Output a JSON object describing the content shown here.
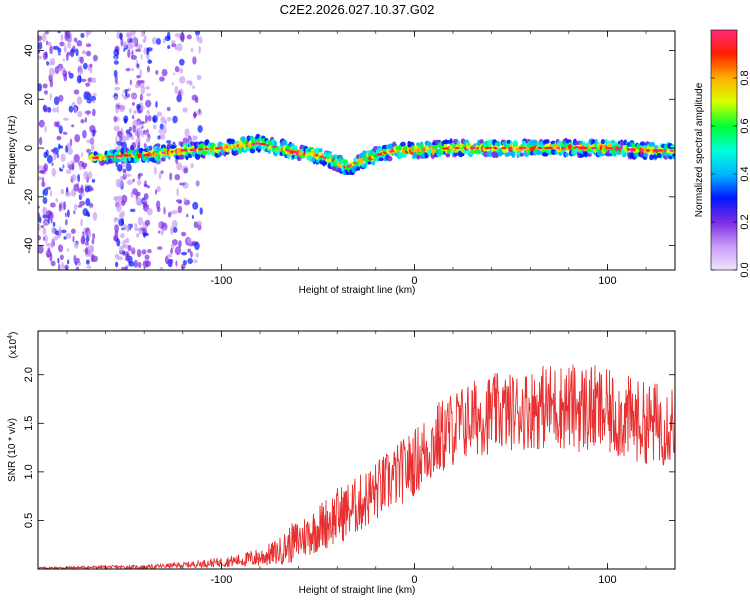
{
  "chart_data": [
    {
      "type": "heatmap",
      "title": "C2E2.2026.027.10.37.G02",
      "xlabel": "Height of straight line (km)",
      "ylabel": "Frequency (Hz)",
      "xlim": [
        -195,
        135
      ],
      "ylim": [
        -50,
        48
      ],
      "x_ticks": [
        -100,
        0,
        100
      ],
      "x_tick_labels": [
        "-100",
        "0",
        "100"
      ],
      "y_ticks": [
        -40,
        -20,
        0,
        20,
        40
      ],
      "y_tick_labels": [
        "-40",
        "-20",
        "0",
        "20",
        "40"
      ],
      "ridge": {
        "description": "Doppler frequency ridge of the signal",
        "x": [
          -165,
          -150,
          -140,
          -120,
          -100,
          -80,
          -70,
          -60,
          -50,
          -40,
          -35,
          -30,
          -20,
          -10,
          0,
          20,
          40,
          60,
          80,
          100,
          120,
          135
        ],
        "frequency": [
          -4,
          -3,
          -3,
          -1,
          0,
          2,
          0,
          -2,
          -3,
          -6,
          -8,
          -6,
          -3,
          -1,
          -1,
          0,
          0,
          0,
          0,
          0,
          -1,
          -1
        ]
      },
      "colorbar": {
        "label": "Normalized spectral amplitude",
        "range": [
          0,
          1
        ],
        "ticks": [
          0.0,
          0.2,
          0.4,
          0.6,
          0.8
        ],
        "tick_labels": [
          "0.0",
          "0.2",
          "0.4",
          "0.6",
          "0.8"
        ],
        "colors": [
          "#f2e4ff",
          "#c89cf6",
          "#7a2be6",
          "#0018ff",
          "#00b8ff",
          "#00ffd8",
          "#00ff30",
          "#d8ff00",
          "#ffb000",
          "#ff2000",
          "#ff2a7a"
        ]
      }
    },
    {
      "type": "line",
      "title": "",
      "xlabel": "Height of straight line (km)",
      "ylabel": "SNR (10 * v/v)",
      "scale_label": "(x10",
      "scale_exponent": "4",
      "scale_close": ")",
      "xlim": [
        -195,
        135
      ],
      "ylim": [
        0,
        2.45
      ],
      "x_ticks": [
        -100,
        0,
        100
      ],
      "x_tick_labels": [
        "-100",
        "0",
        "100"
      ],
      "y_ticks": [
        0.5,
        1.0,
        1.5,
        2.0
      ],
      "y_tick_labels": [
        "0.5",
        "1.0",
        "1.5",
        "2.0"
      ],
      "series": [
        {
          "name": "SNR",
          "color": "#e83030",
          "envelope": {
            "x": [
              -195,
              -160,
              -140,
              -120,
              -100,
              -90,
              -80,
              -70,
              -65,
              -60,
              -50,
              -40,
              -30,
              -20,
              -10,
              0,
              10,
              20,
              30,
              40,
              50,
              60,
              70,
              80,
              90,
              100,
              110,
              120,
              130,
              135
            ],
            "mean": [
              0.01,
              0.02,
              0.02,
              0.04,
              0.07,
              0.09,
              0.12,
              0.18,
              0.25,
              0.3,
              0.42,
              0.55,
              0.65,
              0.8,
              0.95,
              1.1,
              1.3,
              1.45,
              1.55,
              1.6,
              1.62,
              1.65,
              1.68,
              1.67,
              1.65,
              1.6,
              1.55,
              1.5,
              1.5,
              1.55
            ],
            "amp": [
              0.01,
              0.015,
              0.02,
              0.03,
              0.05,
              0.07,
              0.1,
              0.14,
              0.2,
              0.22,
              0.25,
              0.3,
              0.3,
              0.32,
              0.33,
              0.35,
              0.4,
              0.4,
              0.4,
              0.42,
              0.4,
              0.42,
              0.45,
              0.45,
              0.48,
              0.45,
              0.45,
              0.42,
              0.45,
              0.45
            ]
          }
        }
      ]
    }
  ]
}
